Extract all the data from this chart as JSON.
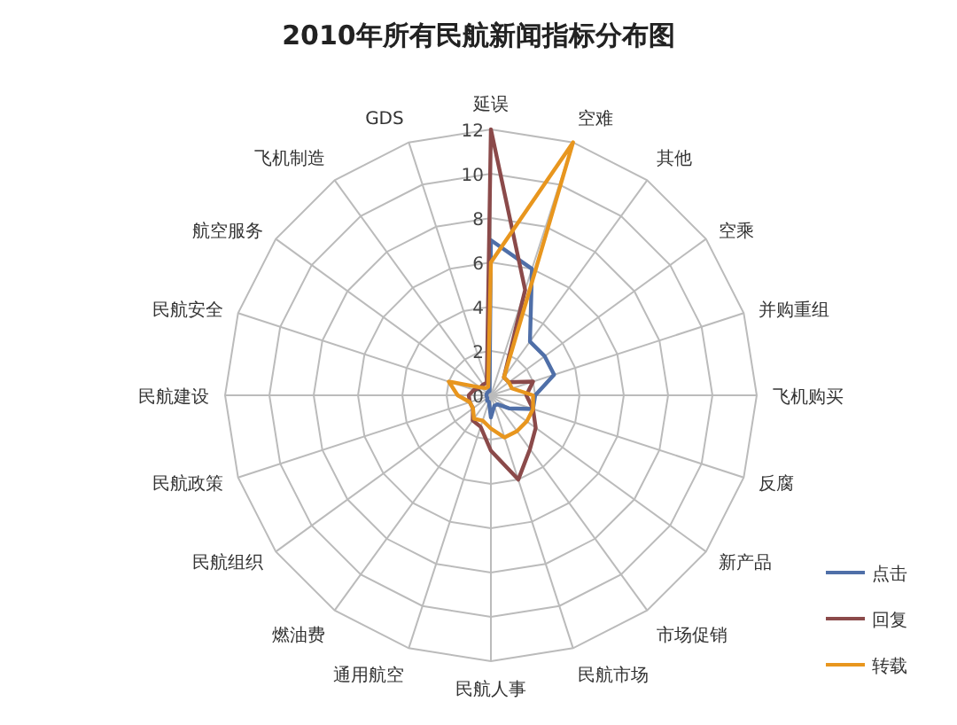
{
  "chart_data": {
    "type": "radar",
    "title": "2010年所有民航新闻指标分布图",
    "categories": [
      "延误",
      "空难",
      "其他",
      "空乘",
      "并购重组",
      "飞机购买",
      "反腐",
      "新产品",
      "市场促销",
      "民航市场",
      "民航人事",
      "通用航空",
      "燃油费",
      "民航组织",
      "民航政策",
      "民航建设",
      "民航安全",
      "航空服务",
      "飞机制造",
      "GDS"
    ],
    "series": [
      {
        "name": "点击",
        "color": "#4f6fa8",
        "values": [
          7,
          6,
          3,
          3,
          3,
          2,
          2,
          1,
          0.5,
          0.5,
          1,
          0.3,
          0.3,
          0.2,
          0.2,
          0.2,
          0.2,
          0.2,
          0.2,
          0.2
        ]
      },
      {
        "name": "回复",
        "color": "#8b4a4a",
        "values": [
          12,
          5,
          1,
          1,
          2,
          1.6,
          2,
          2.5,
          3,
          4,
          2.5,
          1.5,
          1.4,
          1,
          1,
          1,
          0.8,
          0.6,
          0.6,
          0.6
        ]
      },
      {
        "name": "转载",
        "color": "#e8961e",
        "values": [
          6,
          12,
          1,
          1,
          1,
          1.9,
          2,
          2,
          2,
          2,
          1.5,
          1.2,
          1.3,
          1,
          1,
          1.5,
          2,
          0.6,
          0.4,
          0.4
        ]
      }
    ],
    "ylim": [
      0,
      12
    ],
    "yticks": [
      0,
      2,
      4,
      6,
      8,
      10,
      12
    ],
    "legend": "bottom right",
    "line_style": "solid",
    "marker": "none"
  }
}
